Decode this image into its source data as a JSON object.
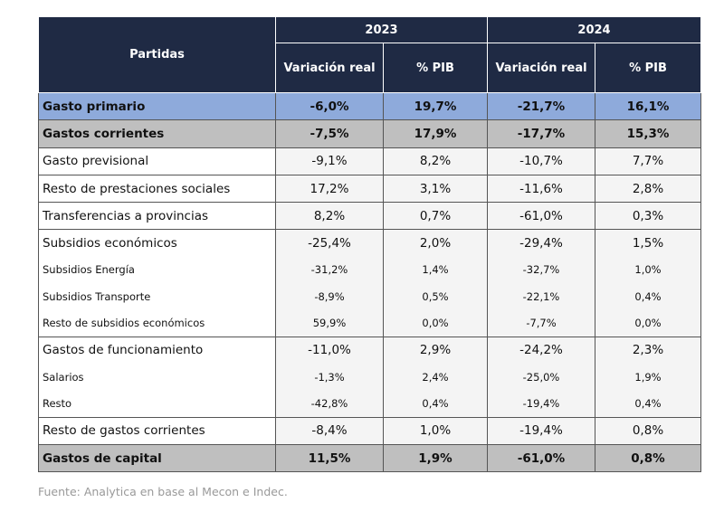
{
  "table": {
    "header": {
      "partidas": "Partidas",
      "years": [
        "2023",
        "2024"
      ],
      "sub": [
        "Variación real",
        "% PIB",
        "Variación real",
        "% PIB"
      ]
    },
    "rows": [
      [
        "Gasto primario",
        "-6,0%",
        "19,7%",
        "-21,7%",
        "16,1%"
      ],
      [
        "Gastos corrientes",
        "-7,5%",
        "17,9%",
        "-17,7%",
        "15,3%"
      ],
      [
        "Gasto previsional",
        "-9,1%",
        "8,2%",
        "-10,7%",
        "7,7%"
      ],
      [
        "Resto de prestaciones sociales",
        "17,2%",
        "3,1%",
        "-11,6%",
        "2,8%"
      ],
      [
        "Transferencias a provincias",
        "8,2%",
        "0,7%",
        "-61,0%",
        "0,3%"
      ],
      [
        "Subsidios económicos",
        "-25,4%",
        "2,0%",
        "-29,4%",
        "1,5%"
      ],
      [
        "Subsidios Energía",
        "-31,2%",
        "1,4%",
        "-32,7%",
        "1,0%"
      ],
      [
        "Subsidios Transporte",
        "-8,9%",
        "0,5%",
        "-22,1%",
        "0,4%"
      ],
      [
        "Resto de subsidios económicos",
        "59,9%",
        "0,0%",
        "-7,7%",
        "0,0%"
      ],
      [
        "Gastos de funcionamiento",
        "-11,0%",
        "2,9%",
        "-24,2%",
        "2,3%"
      ],
      [
        "Salarios",
        "-1,3%",
        "2,4%",
        "-25,0%",
        "1,9%"
      ],
      [
        "Resto",
        "-42,8%",
        "0,4%",
        "-19,4%",
        "0,4%"
      ],
      [
        "Resto de gastos corrientes",
        "-8,4%",
        "1,0%",
        "-19,4%",
        "0,8%"
      ],
      [
        "Gastos de capital",
        "11,5%",
        "1,9%",
        "-61,0%",
        "0,8%"
      ]
    ]
  },
  "footer": "Fuente: Analytica en base al Mecon e Indec."
}
